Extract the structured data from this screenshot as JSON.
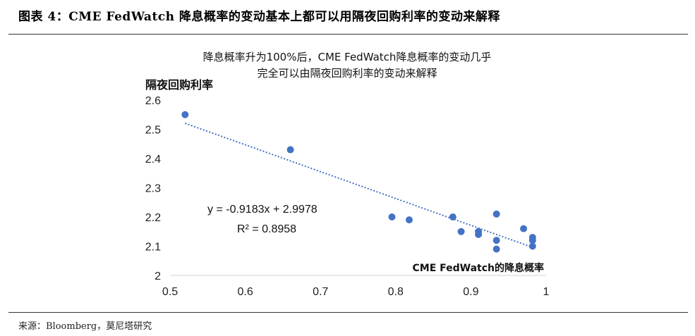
{
  "header": {
    "figure_title": "图表 4：CME FedWatch 降息概率的变动基本上都可以用隔夜回购利率的变动来解释"
  },
  "footer": {
    "source": "来源：Bloomberg，莫尼塔研究"
  },
  "chart_data": {
    "type": "scatter",
    "title_lines": [
      "降息概率升为100%后，CME FedWatch降息概率的变动几乎",
      "完全可以由隔夜回购利率的变动来解释"
    ],
    "ylabel": "隔夜回购利率",
    "xlabel": "CME FedWatch的降息概率",
    "xlim": [
      0.5,
      1
    ],
    "ylim": [
      2,
      2.6
    ],
    "xticks": [
      "0.5",
      "0.6",
      "0.7",
      "0.8",
      "0.9",
      "1"
    ],
    "yticks": [
      "2",
      "2.1",
      "2.2",
      "2.3",
      "2.4",
      "2.5",
      "2.6"
    ],
    "grid": false,
    "point_color": "#4472C4",
    "trendline_color": "#4472C4",
    "points": [
      {
        "x": 0.52,
        "y": 2.55
      },
      {
        "x": 0.66,
        "y": 2.43
      },
      {
        "x": 0.795,
        "y": 2.2
      },
      {
        "x": 0.818,
        "y": 2.19
      },
      {
        "x": 0.876,
        "y": 2.2
      },
      {
        "x": 0.887,
        "y": 2.15
      },
      {
        "x": 0.91,
        "y": 2.15
      },
      {
        "x": 0.91,
        "y": 2.14
      },
      {
        "x": 0.934,
        "y": 2.21
      },
      {
        "x": 0.934,
        "y": 2.12
      },
      {
        "x": 0.934,
        "y": 2.09
      },
      {
        "x": 0.97,
        "y": 2.16
      },
      {
        "x": 0.982,
        "y": 2.13
      },
      {
        "x": 0.982,
        "y": 2.12
      },
      {
        "x": 0.982,
        "y": 2.1
      }
    ],
    "trendline": {
      "slope": -0.9183,
      "intercept": 2.9978,
      "x_range": [
        0.52,
        0.982
      ]
    },
    "annotations": {
      "equation": "y = -0.9183x + 2.9978",
      "r_squared": "R² = 0.8958"
    }
  }
}
